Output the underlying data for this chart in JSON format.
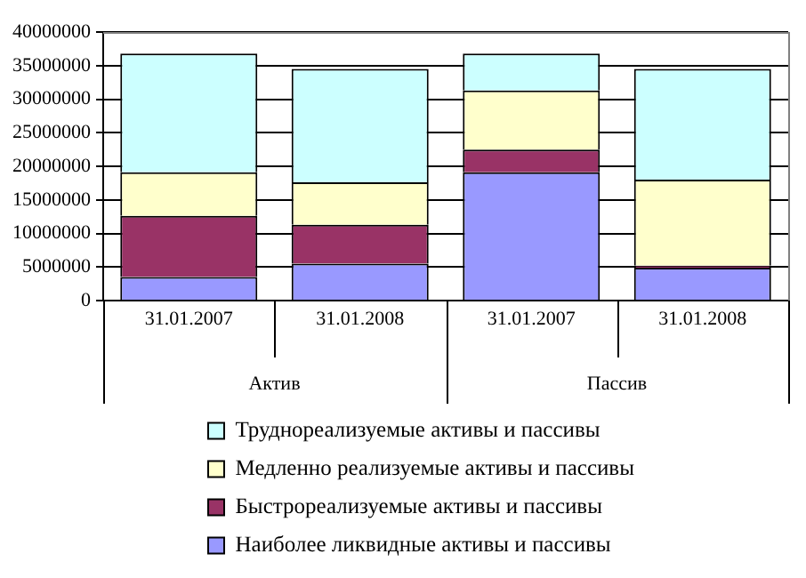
{
  "chart_data": {
    "type": "bar",
    "stacked": true,
    "categories": [
      "31.01.2007",
      "31.01.2008",
      "31.01.2007",
      "31.01.2008"
    ],
    "annotations": [
      "Актив",
      "Пассив"
    ],
    "series": [
      {
        "name": "Наиболее ликвидные активы и пассивы",
        "color": "#9999ff",
        "values": [
          3500000,
          5500000,
          19100000,
          4900000
        ]
      },
      {
        "name": "Быстрореализуемые активы и пассивы",
        "color": "#993366",
        "values": [
          9100000,
          5800000,
          3400000,
          300000
        ]
      },
      {
        "name": "Медленно реализуемые активы и пассивы",
        "color": "#ffffcc",
        "values": [
          6500000,
          6300000,
          8800000,
          12800000
        ]
      },
      {
        "name": "Труднореализуемые активы и пассивы",
        "color": "#ccffff",
        "values": [
          17700000,
          16900000,
          5500000,
          16500000
        ]
      }
    ],
    "ylim": [
      0,
      40000000
    ],
    "yticks": [
      0,
      5000000,
      10000000,
      15000000,
      20000000,
      25000000,
      30000000,
      35000000,
      40000000
    ],
    "grid": "y",
    "legend": "bottom"
  }
}
